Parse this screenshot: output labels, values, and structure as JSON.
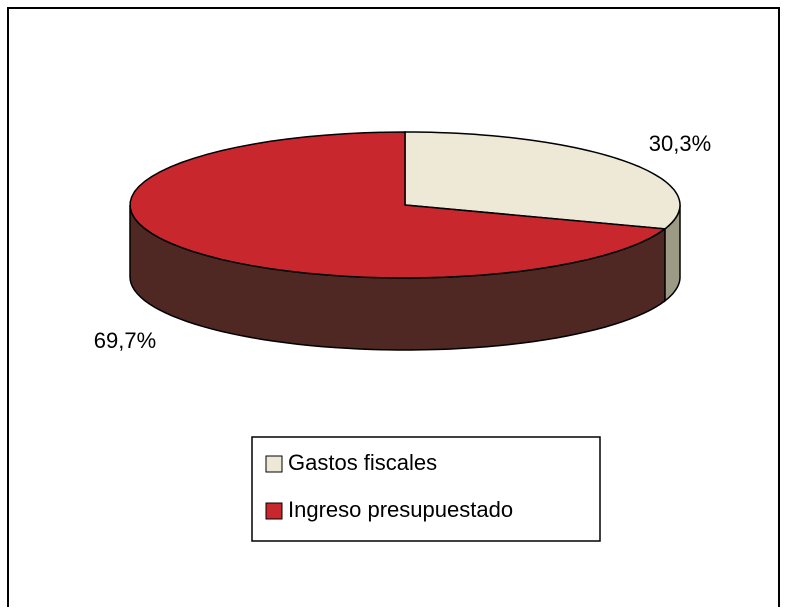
{
  "chart_data": {
    "type": "pie3d",
    "categories": [
      "Gastos fiscales",
      "Ingreso presupuestado"
    ],
    "values": [
      30.3,
      69.7
    ],
    "value_labels": [
      "30,3%",
      "69,7%"
    ],
    "colors": [
      "#ede9d6",
      "#c8282d"
    ],
    "side_colors": [
      "#9c9985",
      "#4f2823"
    ],
    "legend": "bottom"
  }
}
